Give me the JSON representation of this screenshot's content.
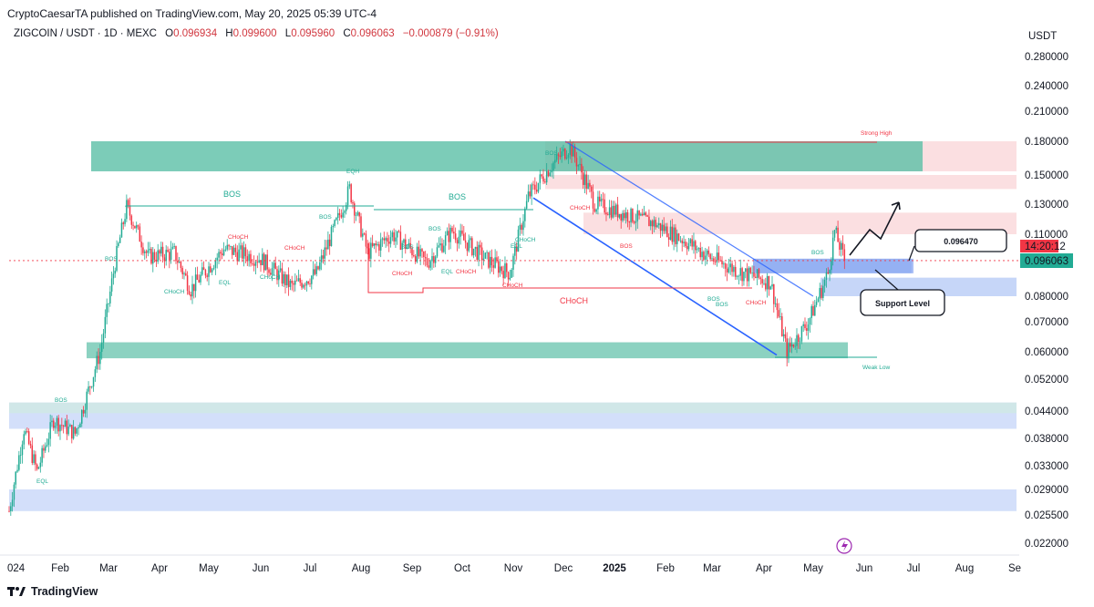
{
  "header": {
    "publisher_line": "CryptoCaesarTA published on TradingView.com, May 20, 2025 05:39 UTC-4"
  },
  "legend": {
    "symbol": "ZIGCOIN / USDT · 1D · MEXC",
    "open_label": "O",
    "open": "0.096934",
    "high_label": "H",
    "high": "0.099600",
    "low_label": "L",
    "low": "0.095960",
    "close_label": "C",
    "close": "0.096063",
    "change": "−0.000879 (−0.91%)"
  },
  "price_axis": {
    "currency": "USDT",
    "ticks": [
      "0.280000",
      "0.240000",
      "0.210000",
      "0.180000",
      "0.150000",
      "0.130000",
      "0.110000",
      "0.080000",
      "0.070000",
      "0.060000",
      "0.052000",
      "0.044000",
      "0.038000",
      "0.033000",
      "0.029000",
      "0.025500",
      "0.022000"
    ],
    "countdown": "14:20:12",
    "last_price": "0.096063"
  },
  "time_axis": {
    "ticks": [
      "024",
      "Feb",
      "Mar",
      "Apr",
      "May",
      "Jun",
      "Jul",
      "Aug",
      "Sep",
      "Oct",
      "Nov",
      "Dec",
      "2025",
      "Feb",
      "Mar",
      "Apr",
      "May",
      "Jun",
      "Jul",
      "Aug",
      "Se"
    ]
  },
  "annotations": {
    "target_price": "0.096470",
    "support_label": "Support Level",
    "strong_high": "Strong High",
    "weak_low": "Weak Low",
    "bos_labels": [
      "BOS",
      "BOS"
    ],
    "choch_big": "CHoCH",
    "small_labels": [
      "EQH",
      "EQL",
      "EQL",
      "BOS",
      "BOS",
      "CHoCH",
      "CHoCH",
      "CHoCH",
      "CHoCH",
      "BOS",
      "CHoCH",
      "EQL",
      "CHoCH",
      "BOS",
      "CHoCH",
      "CHoCH",
      "CHoCH",
      "BOS",
      "BOS",
      "BOS",
      "CHoCH",
      "BOS",
      "BOS",
      "EQL",
      "BOS"
    ]
  },
  "footer": {
    "brand": "TradingView"
  },
  "colors": {
    "up": "#22ab94",
    "down": "#f23645",
    "green_zone": "#5bbfa6",
    "red_zone": "#f7b9bd",
    "blue_zone": "#aec5f5",
    "trendline": "#2962ff",
    "axis_text": "#131722"
  },
  "chart_data": {
    "type": "candlestick",
    "symbol": "ZIGCOIN / USDT",
    "interval": "1D",
    "y_scale": "log",
    "ylim": [
      0.021,
      0.3
    ],
    "x_range": [
      "2024-01-01",
      "2025-09-05"
    ],
    "ohlc_last": {
      "open": 0.096934,
      "high": 0.0996,
      "low": 0.09596,
      "close": 0.096063
    },
    "price_path": [
      [
        "2024-01-01",
        0.026
      ],
      [
        "2024-01-10",
        0.04
      ],
      [
        "2024-01-18",
        0.032
      ],
      [
        "2024-01-28",
        0.042
      ],
      [
        "2024-02-10",
        0.039
      ],
      [
        "2024-02-25",
        0.06
      ],
      [
        "2024-03-05",
        0.095
      ],
      [
        "2024-03-12",
        0.128
      ],
      [
        "2024-03-25",
        0.098
      ],
      [
        "2024-04-10",
        0.1
      ],
      [
        "2024-04-20",
        0.083
      ],
      [
        "2024-05-10",
        0.102
      ],
      [
        "2024-06-01",
        0.097
      ],
      [
        "2024-06-20",
        0.084
      ],
      [
        "2024-07-05",
        0.09
      ],
      [
        "2024-07-25",
        0.14
      ],
      [
        "2024-08-05",
        0.1
      ],
      [
        "2024-08-20",
        0.11
      ],
      [
        "2024-09-10",
        0.095
      ],
      [
        "2024-09-25",
        0.112
      ],
      [
        "2024-10-15",
        0.097
      ],
      [
        "2024-10-30",
        0.09
      ],
      [
        "2024-11-10",
        0.135
      ],
      [
        "2024-11-25",
        0.16
      ],
      [
        "2024-12-05",
        0.175
      ],
      [
        "2024-12-20",
        0.13
      ],
      [
        "2025-01-10",
        0.122
      ],
      [
        "2025-01-25",
        0.117
      ],
      [
        "2025-02-15",
        0.105
      ],
      [
        "2025-03-01",
        0.097
      ],
      [
        "2025-03-20",
        0.09
      ],
      [
        "2025-04-05",
        0.086
      ],
      [
        "2025-04-15",
        0.06
      ],
      [
        "2025-04-28",
        0.07
      ],
      [
        "2025-05-10",
        0.09
      ],
      [
        "2025-05-14",
        0.112
      ],
      [
        "2025-05-20",
        0.096063
      ]
    ],
    "zones": [
      {
        "kind": "supply",
        "low": 0.153,
        "high": 0.18
      },
      {
        "kind": "supply",
        "low": 0.14,
        "high": 0.15
      },
      {
        "kind": "supply",
        "low": 0.11,
        "high": 0.124
      },
      {
        "kind": "demand",
        "low": 0.058,
        "high": 0.063
      },
      {
        "kind": "demand",
        "low": 0.04,
        "high": 0.046
      },
      {
        "kind": "demand",
        "low": 0.026,
        "high": 0.029
      },
      {
        "kind": "support",
        "low": 0.09,
        "high": 0.097
      },
      {
        "kind": "support",
        "low": 0.08,
        "high": 0.088
      }
    ],
    "levels": {
      "target": 0.09647,
      "strong_high": 0.18,
      "weak_low": 0.059
    }
  }
}
